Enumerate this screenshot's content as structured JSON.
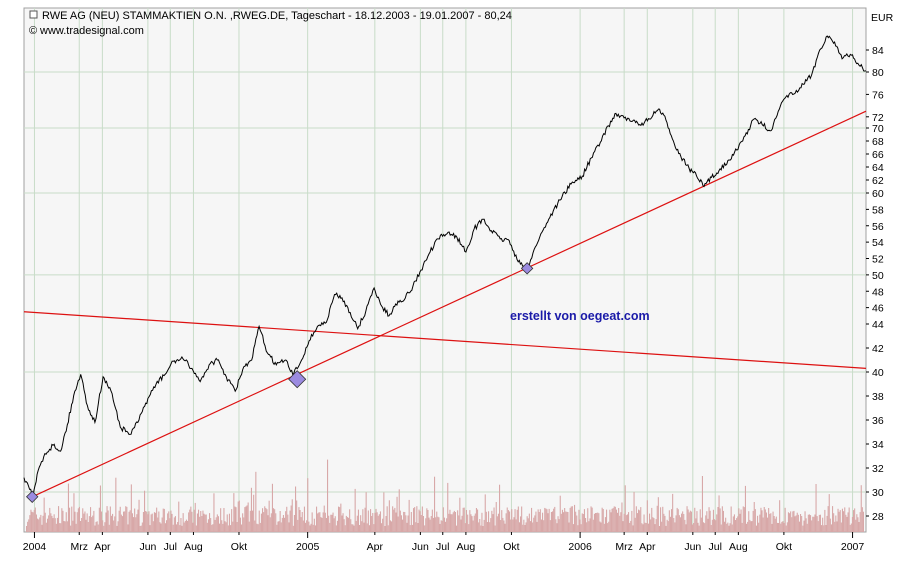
{
  "header": {
    "title": "RWE AG (NEU) STAMMAKTIEN O.N. ,RWEG.DE, Tageschart - 18.12.2003 - 19.01.2007 - 80,24",
    "source": "www.tradesignal.com",
    "copyright_symbol": "©",
    "currency": "EUR"
  },
  "annotation": "erstellt von oegeat.com",
  "colors": {
    "background": "#ffffff",
    "plot_background": "#f6f6f6",
    "grid": "#c8dcc8",
    "price_line": "#000000",
    "trend_line": "#dd1111",
    "volume": "#d8a8a8",
    "marker": "#9b8be0"
  },
  "chart_data": {
    "type": "line",
    "title": "RWE AG (NEU) STAMMAKTIEN O.N. ,RWEG.DE, Tageschart - 18.12.2003 - 19.01.2007 - 80,24",
    "xlabel": "",
    "ylabel": "EUR",
    "xlim": [
      "2003-12-18",
      "2007-01-19"
    ],
    "ylim": [
      26,
      90
    ],
    "y_ticks": [
      28,
      30,
      32,
      34,
      36,
      38,
      40,
      42,
      44,
      46,
      48,
      50,
      52,
      54,
      56,
      58,
      60,
      62,
      64,
      66,
      68,
      70,
      72,
      76,
      80,
      84,
      "EUR"
    ],
    "x_ticks": [
      {
        "date": "2004-01-01",
        "label": "2004"
      },
      {
        "date": "2004-03-01",
        "label": "Mrz"
      },
      {
        "date": "2004-04-01",
        "label": "Apr"
      },
      {
        "date": "2004-06-01",
        "label": "Jun"
      },
      {
        "date": "2004-07-01",
        "label": "Jul"
      },
      {
        "date": "2004-08-01",
        "label": "Aug"
      },
      {
        "date": "2004-10-01",
        "label": "Okt"
      },
      {
        "date": "2005-01-01",
        "label": "2005"
      },
      {
        "date": "2005-04-01",
        "label": "Apr"
      },
      {
        "date": "2005-06-01",
        "label": "Jun"
      },
      {
        "date": "2005-07-01",
        "label": "Jul"
      },
      {
        "date": "2005-08-01",
        "label": "Aug"
      },
      {
        "date": "2005-10-01",
        "label": "Okt"
      },
      {
        "date": "2006-01-01",
        "label": "2006"
      },
      {
        "date": "2006-03-01",
        "label": "Mrz"
      },
      {
        "date": "2006-04-01",
        "label": "Apr"
      },
      {
        "date": "2006-06-01",
        "label": "Jun"
      },
      {
        "date": "2006-07-01",
        "label": "Jul"
      },
      {
        "date": "2006-08-01",
        "label": "Aug"
      },
      {
        "date": "2006-10-01",
        "label": "Okt"
      },
      {
        "date": "2007-01-01",
        "label": "2007"
      }
    ],
    "grid": true,
    "series": [
      {
        "type": "line",
        "points": [
          [
            "2003-12-18",
            31.2
          ],
          [
            "2003-12-24",
            30.5
          ],
          [
            "2003-12-30",
            29.6
          ],
          [
            "2004-01-06",
            31.8
          ],
          [
            "2004-01-15",
            33.2
          ],
          [
            "2004-01-26",
            33.9
          ],
          [
            "2004-02-05",
            33.4
          ],
          [
            "2004-02-14",
            35.6
          ],
          [
            "2004-02-24",
            38.4
          ],
          [
            "2004-03-03",
            39.8
          ],
          [
            "2004-03-12",
            37.2
          ],
          [
            "2004-03-22",
            35.8
          ],
          [
            "2004-04-02",
            39.6
          ],
          [
            "2004-04-14",
            38.2
          ],
          [
            "2004-04-25",
            35.4
          ],
          [
            "2004-05-08",
            34.8
          ],
          [
            "2004-05-20",
            36.0
          ],
          [
            "2004-06-01",
            37.8
          ],
          [
            "2004-06-12",
            39.0
          ],
          [
            "2004-06-24",
            39.8
          ],
          [
            "2004-07-05",
            40.9
          ],
          [
            "2004-07-18",
            41.1
          ],
          [
            "2004-07-30",
            40.3
          ],
          [
            "2004-08-10",
            39.2
          ],
          [
            "2004-08-22",
            40.6
          ],
          [
            "2004-09-02",
            41.0
          ],
          [
            "2004-09-14",
            39.6
          ],
          [
            "2004-09-26",
            38.4
          ],
          [
            "2004-10-06",
            40.2
          ],
          [
            "2004-10-18",
            41.0
          ],
          [
            "2004-10-28",
            43.8
          ],
          [
            "2004-11-08",
            41.6
          ],
          [
            "2004-11-20",
            40.6
          ],
          [
            "2004-12-02",
            41.0
          ],
          [
            "2004-12-12",
            39.8
          ],
          [
            "2004-12-21",
            40.6
          ],
          [
            "2005-01-03",
            42.6
          ],
          [
            "2005-01-14",
            43.8
          ],
          [
            "2005-01-26",
            44.2
          ],
          [
            "2005-02-06",
            47.6
          ],
          [
            "2005-02-16",
            47.2
          ],
          [
            "2005-02-27",
            45.4
          ],
          [
            "2005-03-09",
            43.6
          ],
          [
            "2005-03-20",
            45.6
          ],
          [
            "2005-03-31",
            48.4
          ],
          [
            "2005-04-10",
            46.2
          ],
          [
            "2005-04-20",
            45.0
          ],
          [
            "2005-05-02",
            46.8
          ],
          [
            "2005-05-12",
            47.2
          ],
          [
            "2005-05-22",
            48.6
          ],
          [
            "2005-06-02",
            50.6
          ],
          [
            "2005-06-14",
            52.8
          ],
          [
            "2005-06-25",
            54.4
          ],
          [
            "2005-07-08",
            55.2
          ],
          [
            "2005-07-20",
            54.6
          ],
          [
            "2005-08-01",
            52.8
          ],
          [
            "2005-08-12",
            55.6
          ],
          [
            "2005-08-24",
            56.8
          ],
          [
            "2005-09-04",
            55.4
          ],
          [
            "2005-09-16",
            54.4
          ],
          [
            "2005-09-28",
            54.2
          ],
          [
            "2005-10-10",
            51.6
          ],
          [
            "2005-10-22",
            50.6
          ],
          [
            "2005-11-02",
            53.4
          ],
          [
            "2005-11-14",
            55.8
          ],
          [
            "2005-11-26",
            57.8
          ],
          [
            "2005-12-08",
            59.6
          ],
          [
            "2005-12-20",
            61.4
          ],
          [
            "2006-01-04",
            62.6
          ],
          [
            "2006-01-16",
            65.4
          ],
          [
            "2006-01-28",
            67.8
          ],
          [
            "2006-02-08",
            70.4
          ],
          [
            "2006-02-18",
            72.6
          ],
          [
            "2006-03-01",
            71.8
          ],
          [
            "2006-03-12",
            71.2
          ],
          [
            "2006-03-22",
            70.6
          ],
          [
            "2006-04-04",
            71.6
          ],
          [
            "2006-04-16",
            73.4
          ],
          [
            "2006-04-26",
            71.4
          ],
          [
            "2006-05-06",
            68.0
          ],
          [
            "2006-05-16",
            65.6
          ],
          [
            "2006-05-27",
            63.8
          ],
          [
            "2006-06-06",
            62.6
          ],
          [
            "2006-06-16",
            61.0
          ],
          [
            "2006-06-26",
            62.4
          ],
          [
            "2006-07-06",
            63.4
          ],
          [
            "2006-07-18",
            65.0
          ],
          [
            "2006-07-30",
            66.6
          ],
          [
            "2006-08-10",
            68.8
          ],
          [
            "2006-08-22",
            71.6
          ],
          [
            "2006-09-02",
            70.6
          ],
          [
            "2006-09-14",
            69.6
          ],
          [
            "2006-09-25",
            73.4
          ],
          [
            "2006-10-05",
            75.8
          ],
          [
            "2006-10-16",
            76.2
          ],
          [
            "2006-10-27",
            77.8
          ],
          [
            "2006-11-07",
            79.4
          ],
          [
            "2006-11-18",
            84.0
          ],
          [
            "2006-11-28",
            86.8
          ],
          [
            "2006-12-08",
            85.6
          ],
          [
            "2006-12-18",
            82.4
          ],
          [
            "2006-12-29",
            83.2
          ],
          [
            "2007-01-08",
            81.6
          ],
          [
            "2007-01-19",
            80.2
          ]
        ]
      },
      {
        "type": "trendline",
        "points": [
          [
            "2003-12-29",
            29.6
          ],
          [
            "2007-01-19",
            73.0
          ]
        ]
      },
      {
        "type": "trendline",
        "points": [
          [
            "2003-12-18",
            45.5
          ],
          [
            "2007-01-19",
            40.3
          ]
        ]
      },
      {
        "type": "marker",
        "points": [
          [
            "2003-12-29",
            29.6
          ],
          [
            "2004-12-18",
            39.4
          ],
          [
            "2005-10-22",
            50.8
          ]
        ]
      },
      {
        "type": "bar",
        "base": 26,
        "seed": 7,
        "levels_relative": "unitless"
      }
    ]
  }
}
